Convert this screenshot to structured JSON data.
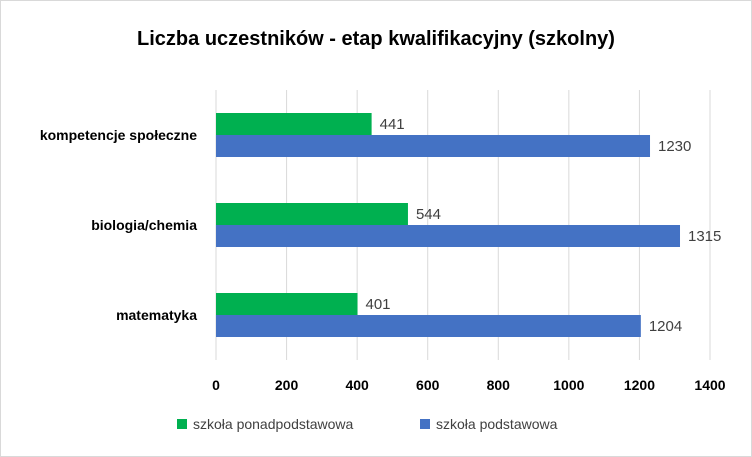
{
  "chart_data": {
    "type": "bar",
    "orientation": "horizontal",
    "title": "Liczba uczestników - etap kwalifikacyjny (szkolny)",
    "categories": [
      "kompetencje społeczne",
      "biologia/chemia",
      "matematyka"
    ],
    "series": [
      {
        "name": "szkoła ponadpodstawowa",
        "color": "#00b050",
        "values": [
          441,
          544,
          401
        ]
      },
      {
        "name": "szkoła podstawowa",
        "color": "#4472c4",
        "values": [
          1230,
          1315,
          1204
        ]
      }
    ],
    "xlim": [
      0,
      1400
    ],
    "xticks": [
      0,
      200,
      400,
      600,
      800,
      1000,
      1200,
      1400
    ],
    "grid": true,
    "legend": "bottom",
    "data_labels": true
  }
}
